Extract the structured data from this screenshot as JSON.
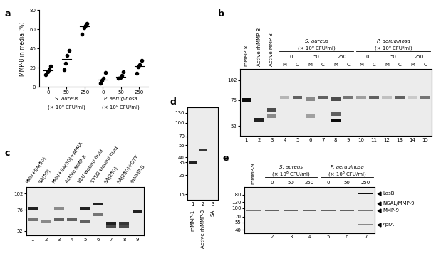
{
  "chart_data": {
    "type": "scatter",
    "panel_label": "a",
    "y_label": "MMP-8 in media (%)",
    "categories": [
      "0",
      "50",
      "250",
      "0",
      "50",
      "250"
    ],
    "values": [
      [
        13,
        16,
        18,
        22
      ],
      [
        18,
        25,
        33,
        38
      ],
      [
        55,
        62,
        64,
        66
      ],
      [
        4,
        7,
        9,
        15
      ],
      [
        9,
        10,
        12,
        16
      ],
      [
        14,
        21,
        23,
        28
      ]
    ],
    "medians": [
      17,
      29,
      63,
      8,
      11,
      22
    ],
    "groups": [
      {
        "label": "S. aureus",
        "note": "(× 10⁶ CFU/ml)",
        "from": 0,
        "to": 2
      },
      {
        "label": "P. aeruginosa",
        "note": "(× 10⁶ CFU/ml)",
        "from": 3,
        "to": 5
      }
    ],
    "color": "#000000",
    "marker": "circle",
    "ylim": [
      0,
      80
    ],
    "yticks": [
      0,
      20,
      40,
      60,
      80
    ]
  },
  "gels": [
    {
      "panel_label": "b",
      "kda_ticks": [
        102,
        76,
        52
      ],
      "ylim": [
        45,
        120
      ],
      "lanes": [
        {
          "number": 1,
          "label": "rhMMP-8",
          "bands": [
            [
              76,
              1.0
            ]
          ]
        },
        {
          "number": 2,
          "label": "Active rhMMP-8",
          "bands": [
            [
              57,
              0.9
            ]
          ]
        },
        {
          "number": 3,
          "label": "Active MMP-8",
          "bands": [
            [
              66,
              0.7
            ],
            [
              60,
              0.4
            ]
          ]
        },
        {
          "number": 4,
          "label": "M",
          "bands": [
            [
              79,
              0.2
            ]
          ]
        },
        {
          "number": 5,
          "label": "C",
          "bands": [
            [
              79,
              0.6
            ]
          ]
        },
        {
          "number": 6,
          "label": "M",
          "bands": [
            [
              77,
              0.4
            ],
            [
              60,
              0.3
            ]
          ]
        },
        {
          "number": 7,
          "label": "C",
          "bands": [
            [
              79,
              0.6
            ]
          ]
        },
        {
          "number": 8,
          "label": "M",
          "bands": [
            [
              77,
              0.7
            ],
            [
              62,
              0.6
            ],
            [
              56,
              1.0
            ]
          ]
        },
        {
          "number": 9,
          "label": "C",
          "bands": [
            [
              79,
              0.5
            ]
          ]
        },
        {
          "number": 10,
          "label": "M",
          "bands": [
            [
              79,
              0.3
            ]
          ]
        },
        {
          "number": 11,
          "label": "C",
          "bands": [
            [
              79,
              0.6
            ]
          ]
        },
        {
          "number": 12,
          "label": "M",
          "bands": [
            [
              79,
              0.15
            ]
          ]
        },
        {
          "number": 13,
          "label": "C",
          "bands": [
            [
              79,
              0.6
            ]
          ]
        },
        {
          "number": 14,
          "label": "M",
          "bands": [
            [
              79,
              0.1
            ]
          ]
        },
        {
          "number": 15,
          "label": "C",
          "bands": [
            [
              79,
              0.5
            ]
          ]
        }
      ],
      "groups": [
        {
          "label": "S. aureus",
          "note": "(× 10⁶ CFU/ml)",
          "from": 4,
          "to": 9
        },
        {
          "label": "P. aeruginosa",
          "note": "(× 10⁶ CFU/ml)",
          "from": 10,
          "to": 15
        }
      ],
      "doses": [
        {
          "label": "0",
          "from": 4,
          "to": 5
        },
        {
          "label": "50",
          "from": 6,
          "to": 7
        },
        {
          "label": "250",
          "from": 8,
          "to": 9
        },
        {
          "label": "0",
          "from": 10,
          "to": 11
        },
        {
          "label": "50",
          "from": 12,
          "to": 13
        },
        {
          "label": "250",
          "from": 14,
          "to": 15
        }
      ]
    },
    {
      "panel_label": "c",
      "kda_ticks": [
        102,
        76,
        52
      ],
      "ylim": [
        48,
        115
      ],
      "lanes": [
        {
          "number": 1,
          "label": "PMN+SA(50)",
          "bands": [
            [
              78,
              0.9
            ],
            [
              64,
              0.5
            ]
          ]
        },
        {
          "number": 2,
          "label": "SA(50)",
          "bands": [
            [
              62,
              0.4
            ]
          ]
        },
        {
          "number": 3,
          "label": "PMN+SA(50)+APMA",
          "bands": [
            [
              78,
              0.4
            ],
            [
              64,
              0.6
            ]
          ]
        },
        {
          "number": 4,
          "label": "Active MMP-8",
          "bands": [
            [
              64,
              0.6
            ]
          ]
        },
        {
          "number": 5,
          "label": "VLU wound fluid",
          "bands": [
            [
              78,
              0.9
            ],
            [
              62,
              0.6
            ]
          ]
        },
        {
          "number": 6,
          "label": "STSG wound fluid",
          "bands": [
            [
              85,
              0.9
            ],
            [
              70,
              0.5
            ]
          ]
        },
        {
          "number": 7,
          "label": "SA(250)",
          "bands": [
            [
              60,
              0.9
            ],
            [
              56,
              0.7
            ]
          ]
        },
        {
          "number": 8,
          "label": "SA(250)+DTT",
          "bands": [
            [
              60,
              0.8
            ],
            [
              56,
              0.7
            ]
          ]
        },
        {
          "number": 9,
          "label": "rhMMP-8",
          "bands": [
            [
              74,
              0.9
            ]
          ]
        }
      ]
    },
    {
      "panel_label": "d",
      "kda_ticks": [
        130,
        100,
        70,
        55,
        40,
        35,
        25,
        15
      ],
      "ylim": [
        13,
        150
      ],
      "lanes": [
        {
          "number": 1,
          "label": "rhMMP-1",
          "bands": [
            [
              35,
              0.9
            ]
          ]
        },
        {
          "number": 2,
          "label": "Active rhMMP-8",
          "bands": [
            [
              48,
              0.8
            ]
          ]
        },
        {
          "number": 3,
          "label": "SA",
          "bands": []
        }
      ]
    },
    {
      "panel_label": "e",
      "kda_ticks": [
        180,
        130,
        100,
        70,
        55,
        40
      ],
      "ylim": [
        35,
        250
      ],
      "lanes": [
        {
          "number": 1,
          "label": "rhMMP-9",
          "bands": [
            [
              92,
              0.5
            ]
          ]
        },
        {
          "number": 2,
          "bands": [
            [
              125,
              0.5
            ],
            [
              92,
              0.6
            ]
          ]
        },
        {
          "number": 3,
          "bands": [
            [
              125,
              0.5
            ],
            [
              92,
              0.6
            ]
          ]
        },
        {
          "number": 4,
          "bands": [
            [
              125,
              0.5
            ],
            [
              92,
              0.6
            ]
          ]
        },
        {
          "number": 5,
          "bands": [
            [
              125,
              0.5
            ],
            [
              92,
              0.6
            ]
          ]
        },
        {
          "number": 6,
          "bands": [
            [
              125,
              0.5
            ],
            [
              92,
              0.6
            ]
          ]
        },
        {
          "number": 7,
          "bands": [
            [
              190,
              1.0
            ],
            [
              125,
              0.4
            ],
            [
              92,
              0.5
            ],
            [
              50,
              0.4
            ]
          ]
        }
      ],
      "groups": [
        {
          "label": "S. aureus",
          "note": "(× 10⁶ CFU/ml)",
          "from": 2,
          "to": 4
        },
        {
          "label": "P. aeruginosa",
          "note": "(× 10⁶ CFU/ml)",
          "from": 5,
          "to": 7
        }
      ],
      "doses": [
        {
          "label": "0",
          "from": 2,
          "to": 2
        },
        {
          "label": "50",
          "from": 3,
          "to": 3
        },
        {
          "label": "250",
          "from": 4,
          "to": 4
        },
        {
          "label": "0",
          "from": 5,
          "to": 5
        },
        {
          "label": "50",
          "from": 6,
          "to": 6
        },
        {
          "label": "250",
          "from": 7,
          "to": 7
        }
      ],
      "annotations": [
        {
          "label": "LasB",
          "kda": 190
        },
        {
          "label": "NGAL/MMP-9",
          "kda": 125
        },
        {
          "label": "MMP-9",
          "kda": 92
        },
        {
          "label": "AprA",
          "kda": 50
        }
      ]
    }
  ]
}
